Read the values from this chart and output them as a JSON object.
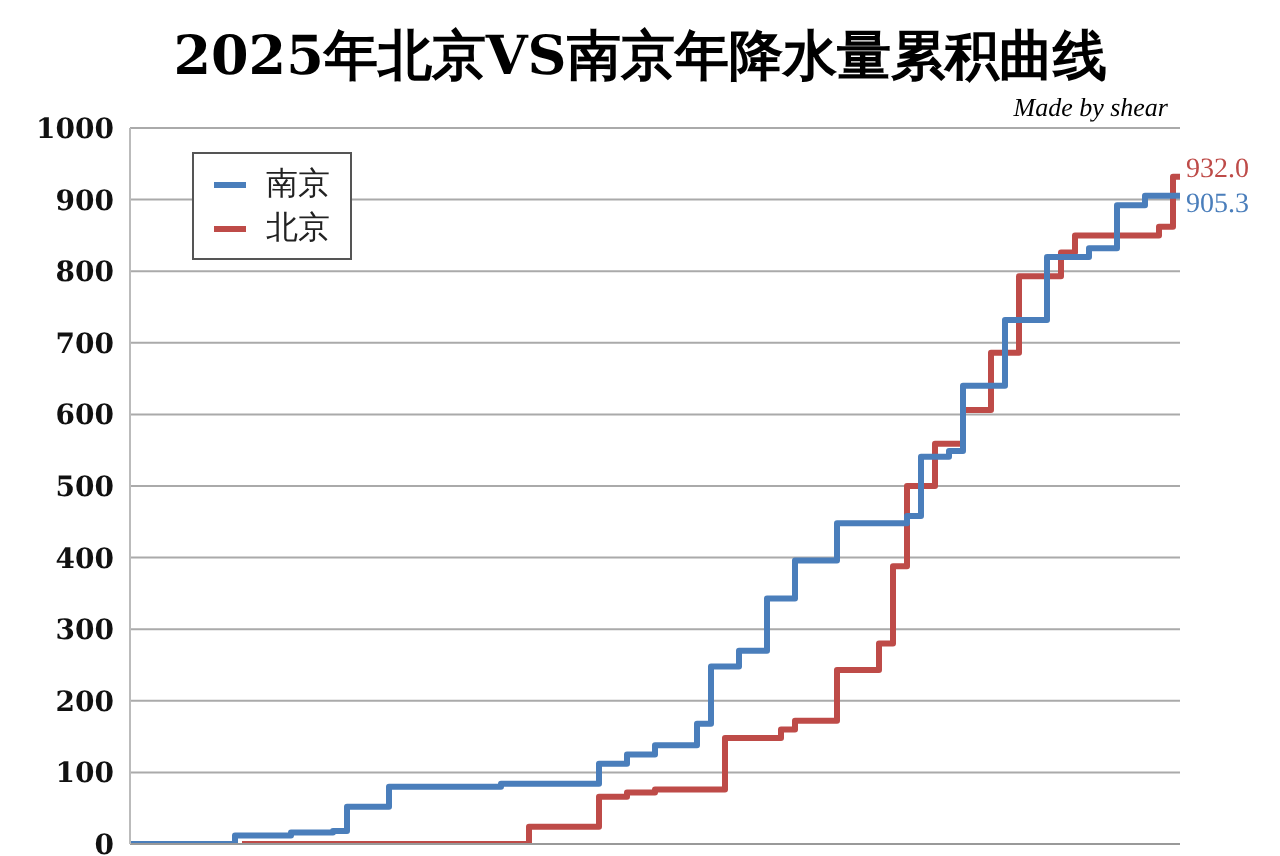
{
  "chart_data": {
    "type": "step",
    "title": "2025年北京VS南京年降水量累积曲线",
    "annotations": [
      "Made by shear"
    ],
    "categories": [
      null,
      null,
      null,
      null,
      null,
      null,
      null,
      null,
      null,
      null,
      null,
      null,
      null,
      null,
      null,
      null,
      null,
      null,
      null,
      null,
      null,
      null,
      null,
      null,
      null,
      null,
      null,
      null,
      null,
      null,
      null,
      null,
      null,
      null,
      null,
      null,
      null,
      null,
      null,
      null,
      null,
      null,
      null,
      null,
      null,
      null,
      null,
      null,
      null,
      null,
      null,
      null,
      null,
      null,
      null,
      null,
      null,
      null,
      null,
      null,
      null,
      null,
      null,
      null,
      null,
      null,
      null,
      null,
      null,
      null,
      null,
      null,
      null,
      null,
      null,
      null
    ],
    "series": [
      {
        "name": "南京",
        "color": "#4a7ebb",
        "values": [
          0,
          0,
          0,
          0,
          0,
          0,
          0,
          0,
          12,
          12,
          12,
          12,
          16,
          16,
          16,
          18,
          52,
          52,
          52,
          80,
          80,
          80,
          80,
          80,
          80,
          80,
          80,
          84,
          84,
          84,
          84,
          84,
          84,
          84,
          112,
          112,
          125,
          125,
          138,
          138,
          138,
          168,
          248,
          248,
          270,
          270,
          343,
          343,
          396,
          396,
          396,
          448,
          448,
          448,
          448,
          448,
          458,
          541,
          541,
          549,
          640,
          640,
          640,
          732,
          732,
          732,
          820,
          820,
          820,
          832,
          832,
          892,
          892,
          905.3,
          905.3,
          905.3
        ],
        "value_labels": [
          null,
          null,
          null,
          null,
          null,
          null,
          null,
          null,
          null,
          null,
          null,
          null,
          null,
          null,
          null,
          null,
          null,
          null,
          null,
          null,
          null,
          null,
          null,
          null,
          null,
          null,
          null,
          null,
          null,
          null,
          null,
          null,
          null,
          null,
          null,
          null,
          null,
          null,
          null,
          null,
          null,
          null,
          null,
          null,
          null,
          null,
          null,
          null,
          null,
          null,
          null,
          null,
          null,
          null,
          null,
          null,
          null,
          null,
          null,
          null,
          null,
          null,
          null,
          null,
          null,
          null,
          null,
          null,
          null,
          null,
          null,
          null,
          null,
          null,
          null,
          "905.3"
        ]
      },
      {
        "name": "北京",
        "color": "#be4b48",
        "values": [
          null,
          null,
          null,
          null,
          null,
          null,
          null,
          null,
          0,
          0,
          0,
          0,
          0,
          0,
          0,
          0,
          0,
          0,
          0,
          0,
          0,
          0,
          0,
          0,
          0,
          0,
          0,
          0,
          0,
          24,
          24,
          24,
          24,
          24,
          66,
          66,
          72,
          72,
          76,
          76,
          76,
          76,
          76,
          148,
          148,
          148,
          148,
          160,
          172,
          172,
          172,
          243,
          243,
          243,
          280,
          388,
          500,
          500,
          559,
          559,
          606,
          606,
          686,
          686,
          793,
          793,
          793,
          826,
          850,
          850,
          850,
          850,
          850,
          850,
          862,
          932
        ],
        "value_labels": [
          null,
          null,
          null,
          null,
          null,
          null,
          null,
          null,
          null,
          null,
          null,
          null,
          null,
          null,
          null,
          null,
          null,
          null,
          null,
          null,
          null,
          null,
          null,
          null,
          null,
          null,
          null,
          null,
          null,
          null,
          null,
          null,
          null,
          null,
          null,
          null,
          null,
          null,
          null,
          null,
          null,
          null,
          null,
          null,
          null,
          null,
          null,
          null,
          null,
          null,
          null,
          null,
          null,
          null,
          null,
          null,
          null,
          null,
          null,
          null,
          null,
          null,
          null,
          null,
          null,
          null,
          null,
          null,
          null,
          null,
          null,
          null,
          null,
          null,
          null,
          "932.0"
        ]
      }
    ],
    "ylim": [
      0,
      1000
    ],
    "yticks": [
      0,
      100,
      200,
      300,
      400,
      500,
      600,
      700,
      800,
      900,
      1000
    ],
    "grid": "y",
    "legend": "top left",
    "tick_labels": "y",
    "marker": "none",
    "line_style": "solid"
  }
}
